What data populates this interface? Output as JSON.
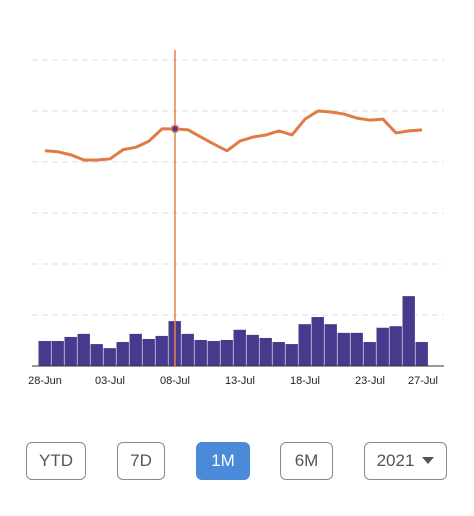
{
  "chart_data": {
    "type": "line-bar",
    "categories": [
      "28-Jun",
      null,
      null,
      null,
      null,
      "03-Jul",
      null,
      null,
      null,
      null,
      "08-Jul",
      null,
      null,
      null,
      null,
      "13-Jul",
      null,
      null,
      null,
      null,
      "18-Jul",
      null,
      null,
      null,
      null,
      "23-Jul",
      null,
      null,
      null,
      "27-Jul"
    ],
    "series": [
      {
        "kind": "line",
        "color": "#e07b45",
        "values": [
          4.22,
          4.2,
          4.14,
          4.04,
          4.04,
          4.06,
          4.24,
          4.29,
          4.41,
          4.65,
          4.65,
          4.63,
          4.49,
          4.35,
          4.22,
          4.41,
          4.49,
          4.53,
          4.61,
          4.53,
          4.84,
          5.0,
          4.98,
          4.94,
          4.86,
          4.82,
          4.84,
          4.57,
          4.61,
          4.63
        ]
      },
      {
        "kind": "bar",
        "color": "#473a8c",
        "values": [
          0.49,
          0.49,
          0.57,
          0.63,
          0.43,
          0.35,
          0.47,
          0.63,
          0.53,
          0.59,
          0.88,
          0.63,
          0.51,
          0.49,
          0.51,
          0.71,
          0.61,
          0.55,
          0.47,
          0.43,
          0.82,
          0.96,
          0.82,
          0.65,
          0.65,
          0.47,
          0.75,
          0.78,
          1.37,
          0.47
        ]
      }
    ],
    "ylim": [
      0,
      6
    ],
    "yticks": [
      1,
      2,
      3,
      4,
      5,
      6
    ],
    "grid": true,
    "crosshair": "08-Jul",
    "crosshair_color": "#e8804f"
  },
  "controls": {
    "range_buttons": [
      "YTD",
      "7D",
      "1M",
      "6M"
    ],
    "selected": "1M",
    "year_select": "2021"
  }
}
